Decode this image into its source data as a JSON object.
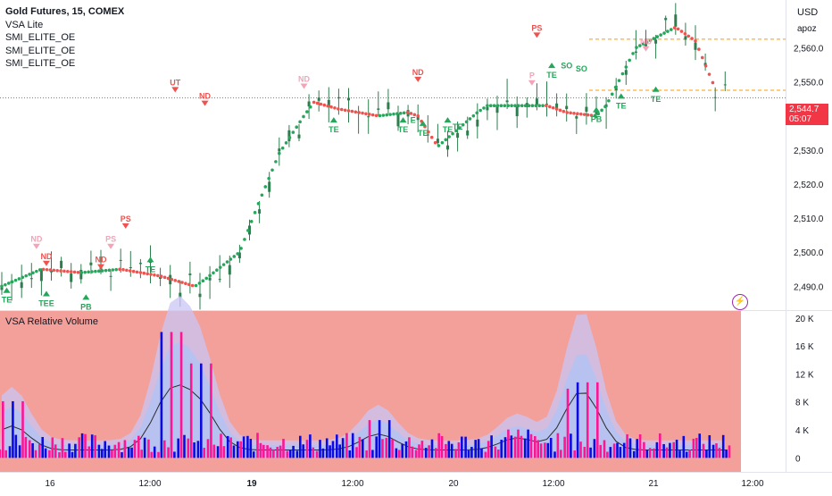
{
  "legend": {
    "title": "Gold Futures, 15, COMEX",
    "indicators": [
      "VSA Lite",
      "SMI_ELITE_OE",
      "SMI_ELITE_OE",
      "SMI_ELITE_OE"
    ]
  },
  "price_axis": {
    "currency": "USD",
    "unit": "apoz"
  },
  "last_price": {
    "value": "2,544.7",
    "countdown": "05:07",
    "color": "#f23645"
  },
  "volume_pane": {
    "title": "VSA Relative Volume",
    "background": "#f4a09a"
  },
  "colors": {
    "up_trail": "#26a65b",
    "down_trail": "#ef5350",
    "candle": "#2e7d4f",
    "bull_vol": "#0b0be0",
    "bear_vol": "#ff1493"
  },
  "chart_data": [
    {
      "type": "line",
      "name": "price",
      "ylim": [
        2483,
        2574
      ],
      "y_ticks": [
        2490,
        2500,
        2510,
        2520,
        2530,
        2540,
        2550,
        2560
      ],
      "y_tick_labels": [
        "2,490.0",
        "2,500.0",
        "2,510.0",
        "2,520.0",
        "2,530.0",
        "2,540.0",
        "2,550.0",
        "2,560.0"
      ],
      "x_tick_labels": [
        "16",
        "12:00",
        "19",
        "12:00",
        "20",
        "12:00",
        "21",
        "12:00"
      ],
      "x_tick_bold": [
        false,
        false,
        true,
        false,
        false,
        false,
        false,
        false
      ],
      "series": [
        {
          "name": "trail",
          "x": [
            0,
            4,
            8,
            12,
            16,
            19.5,
            20.5,
            24,
            26,
            28,
            30.5,
            31.5,
            34,
            38,
            41,
            42,
            44,
            48,
            49,
            52,
            55,
            57,
            60,
            61,
            64,
            68,
            70,
            72
          ],
          "values": [
            2490,
            2495,
            2494,
            2495,
            2493,
            2490,
            2492,
            2500,
            2515,
            2529,
            2540,
            2544,
            2542,
            2540,
            2541,
            2540,
            2531,
            2541,
            2543,
            2543,
            2543,
            2541,
            2540,
            2543,
            2560,
            2566,
            2562,
            2548
          ]
        },
        {
          "name": "trail2",
          "x": [
            60,
            62,
            63.5,
            66,
            68,
            70,
            72,
            73,
            74
          ],
          "values": [
            2565,
            2562,
            2551,
            2549,
            2552,
            2552,
            2553,
            2554,
            2551
          ]
        }
      ],
      "horizontal_lines": [
        2562.5,
        2545.3,
        2547.5
      ],
      "annotations": [
        {
          "text": "TE",
          "x": 0.5,
          "y": 2487,
          "kind": "up"
        },
        {
          "text": "ND",
          "x": 3.5,
          "y": 2503,
          "kind": "nd_faint"
        },
        {
          "text": "ND",
          "x": 4.5,
          "y": 2498,
          "kind": "down"
        },
        {
          "text": "TEE",
          "x": 4.5,
          "y": 2486,
          "kind": "up"
        },
        {
          "text": "PB",
          "x": 8.5,
          "y": 2485,
          "kind": "up"
        },
        {
          "text": "ND",
          "x": 10,
          "y": 2497,
          "kind": "down"
        },
        {
          "text": "PS",
          "x": 11,
          "y": 2503,
          "kind": "ps_faint"
        },
        {
          "text": "PS",
          "x": 12.5,
          "y": 2509,
          "kind": "down"
        },
        {
          "text": "TE",
          "x": 15,
          "y": 2496,
          "kind": "up"
        },
        {
          "text": "UT",
          "x": 17.5,
          "y": 2549,
          "kind": "down"
        },
        {
          "text": "ND",
          "x": 20.5,
          "y": 2545,
          "kind": "down"
        },
        {
          "text": "ND",
          "x": 30.5,
          "y": 2550,
          "kind": "nd_faint"
        },
        {
          "text": "TE",
          "x": 33.5,
          "y": 2537,
          "kind": "up"
        },
        {
          "text": "ND",
          "x": 42,
          "y": 2552,
          "kind": "down"
        },
        {
          "text": "TE",
          "x": 40.5,
          "y": 2537,
          "kind": "up"
        },
        {
          "text": "E",
          "x": 41.5,
          "y": 2538,
          "kind": "label"
        },
        {
          "text": "TE",
          "x": 42.5,
          "y": 2536,
          "kind": "up"
        },
        {
          "text": "TE",
          "x": 45,
          "y": 2537,
          "kind": "up"
        },
        {
          "text": "TE",
          "x": 46,
          "y": 2536,
          "kind": "label"
        },
        {
          "text": "PS",
          "x": 54,
          "y": 2565,
          "kind": "down"
        },
        {
          "text": "P",
          "x": 53.5,
          "y": 2551,
          "kind": "ps_faint"
        },
        {
          "text": "TE",
          "x": 55.5,
          "y": 2553,
          "kind": "up"
        },
        {
          "text": "SO",
          "x": 57,
          "y": 2554,
          "kind": "label"
        },
        {
          "text": "SO",
          "x": 58.5,
          "y": 2553,
          "kind": "label"
        },
        {
          "text": "ND",
          "x": 65,
          "y": 2561,
          "kind": "nd_faint"
        },
        {
          "text": "TE",
          "x": 62.5,
          "y": 2544,
          "kind": "up"
        },
        {
          "text": "PB",
          "x": 60,
          "y": 2540,
          "kind": "up"
        },
        {
          "text": "TE",
          "x": 66,
          "y": 2546,
          "kind": "up"
        }
      ]
    },
    {
      "type": "bar",
      "name": "VSA Relative Volume",
      "ylim": [
        -2000,
        21000
      ],
      "y_ticks": [
        0,
        4000,
        8000,
        12000,
        16000,
        20000
      ],
      "y_tick_labels": [
        "0",
        "4 K",
        "8 K",
        "12 K",
        "16 K",
        "20 K"
      ]
    }
  ]
}
